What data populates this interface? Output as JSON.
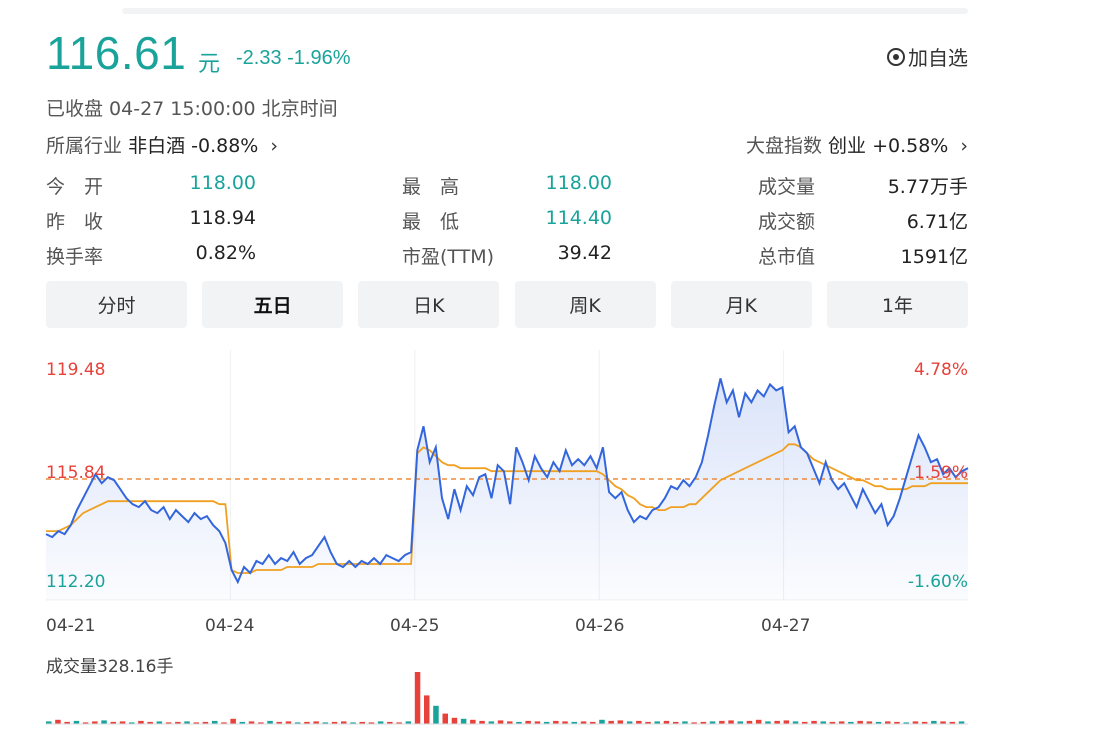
{
  "quote": {
    "price": "116.61",
    "unit": "元",
    "change": "-2.33 -1.96%",
    "add_watchlist": "加自选",
    "status": "已收盘  04-27 15:00:00  北京时间"
  },
  "industry": {
    "label": "所属行业",
    "name": "非白酒",
    "change": "-0.88%"
  },
  "index": {
    "label": "大盘指数",
    "name": "创业",
    "change": "+0.58%"
  },
  "stats": {
    "open_label": "今　开",
    "open": "118.00",
    "high_label": "最　高",
    "high": "118.00",
    "volume_label": "成交量",
    "volume": "5.77万手",
    "prev_close_label": "昨　收",
    "prev_close": "118.94",
    "low_label": "最　低",
    "low": "114.40",
    "turnover_label": "成交额",
    "turnover": "6.71亿",
    "turnover_rate_label": "换手率",
    "turnover_rate": "0.82%",
    "pe_label": "市盈(TTM)",
    "pe": "39.42",
    "market_cap_label": "总市值",
    "market_cap": "1591亿"
  },
  "tabs": [
    "分时",
    "五日",
    "日K",
    "周K",
    "月K",
    "1年"
  ],
  "active_tab": "五日",
  "colors": {
    "up": "#e8413a",
    "down": "#1aa39a",
    "price_line": "#3366dd",
    "avg_line": "#f0a020",
    "ref_line": "#f08a3a"
  },
  "chart_data": {
    "type": "line",
    "x_labels": [
      "04-21",
      "04-24",
      "04-25",
      "04-26",
      "04-27"
    ],
    "y_left": {
      "top": "119.48",
      "mid": "115.84",
      "bottom": "112.20"
    },
    "y_right": {
      "top": "4.78%",
      "mid": "1.59%",
      "bottom": "-1.60%"
    },
    "reference_value": 115.84,
    "ylim": [
      112.2,
      119.48
    ],
    "series": [
      {
        "values": [
          114.0,
          113.9,
          114.1,
          114.0,
          114.3,
          114.8,
          115.2,
          115.6,
          116.0,
          115.7,
          115.9,
          115.8,
          115.5,
          115.2,
          115.0,
          114.9,
          115.1,
          114.8,
          114.7,
          114.9,
          114.5,
          114.8,
          114.6,
          114.4,
          114.7,
          114.5,
          114.6,
          114.3,
          114.1,
          113.7,
          112.8,
          112.4,
          112.9,
          112.7,
          113.1,
          113.0,
          113.3,
          113.0,
          113.2,
          113.1,
          113.4,
          113.0,
          113.2,
          113.3,
          113.6,
          113.9,
          113.4,
          113.0,
          112.9,
          113.1,
          112.9,
          113.1,
          113.0,
          113.2,
          113.0,
          113.3,
          113.2,
          113.1,
          113.3,
          113.4,
          116.8,
          117.6,
          116.4,
          116.9,
          115.2,
          114.5,
          115.5,
          114.8,
          115.6,
          115.3,
          115.9,
          116.0,
          115.2,
          116.3,
          116.1,
          115.0,
          116.9,
          116.4,
          115.8,
          116.6,
          116.2,
          115.9,
          116.4,
          116.1,
          116.8,
          116.3,
          116.5,
          116.3,
          116.6,
          116.2,
          116.9,
          115.4,
          115.2,
          115.4,
          114.8,
          114.4,
          114.6,
          114.5,
          114.8,
          114.9,
          115.2,
          115.6,
          115.5,
          115.8,
          115.6,
          115.9,
          116.4,
          117.3,
          118.3,
          119.2,
          118.4,
          118.8,
          117.9,
          118.7,
          118.4,
          118.8,
          118.6,
          119.0,
          118.8,
          118.9,
          117.4,
          117.6,
          116.9,
          116.7,
          116.2,
          115.7,
          116.4,
          115.8,
          115.5,
          115.7,
          115.3,
          114.9,
          115.5,
          115.1,
          114.7,
          115.0,
          114.3,
          114.6,
          115.2,
          115.9,
          116.6,
          117.3,
          116.9,
          116.4,
          116.5,
          116.0,
          116.2,
          115.9,
          116.1,
          116.2
        ]
      },
      {
        "values": [
          114.1,
          114.1,
          114.1,
          114.2,
          114.3,
          114.5,
          114.7,
          114.8,
          114.9,
          115.0,
          115.1,
          115.1,
          115.1,
          115.1,
          115.1,
          115.1,
          115.1,
          115.1,
          115.1,
          115.1,
          115.1,
          115.1,
          115.1,
          115.1,
          115.1,
          115.1,
          115.1,
          115.1,
          115.0,
          115.0,
          112.8,
          112.7,
          112.7,
          112.7,
          112.8,
          112.8,
          112.8,
          112.8,
          112.8,
          112.9,
          112.9,
          112.9,
          112.9,
          112.9,
          113.0,
          113.0,
          113.0,
          113.0,
          113.0,
          113.0,
          113.0,
          113.0,
          113.0,
          113.0,
          113.0,
          113.0,
          113.0,
          113.0,
          113.0,
          113.0,
          116.7,
          116.9,
          116.8,
          116.6,
          116.4,
          116.3,
          116.3,
          116.2,
          116.2,
          116.2,
          116.2,
          116.2,
          116.1,
          116.1,
          116.1,
          116.1,
          116.1,
          116.1,
          116.1,
          116.1,
          116.1,
          116.1,
          116.1,
          116.1,
          116.1,
          116.1,
          116.1,
          116.1,
          116.1,
          116.1,
          116.0,
          115.8,
          115.6,
          115.5,
          115.3,
          115.2,
          115.0,
          114.9,
          114.9,
          114.8,
          114.8,
          114.9,
          114.9,
          114.9,
          115.0,
          115.0,
          115.2,
          115.4,
          115.6,
          115.8,
          115.9,
          116.0,
          116.1,
          116.2,
          116.3,
          116.4,
          116.5,
          116.6,
          116.7,
          116.8,
          117.0,
          117.0,
          116.9,
          116.7,
          116.5,
          116.4,
          116.3,
          116.2,
          116.1,
          116.0,
          115.9,
          115.8,
          115.8,
          115.7,
          115.6,
          115.6,
          115.5,
          115.5,
          115.5,
          115.5,
          115.6,
          115.6,
          115.6,
          115.7,
          115.7,
          115.7,
          115.7,
          115.7,
          115.7,
          115.7
        ]
      }
    ]
  },
  "volume": {
    "label": "成交量328.16手",
    "spikes": [
      0.05,
      0.08,
      0.04,
      0.06,
      0.03,
      0.05,
      0.07,
      0.04,
      0.05,
      0.03,
      0.06,
      0.04,
      0.05,
      0.03,
      0.04,
      0.05,
      0.03,
      0.04,
      0.06,
      0.03,
      0.1,
      0.04,
      0.05,
      0.03,
      0.06,
      0.04,
      0.05,
      0.03,
      0.04,
      0.05,
      0.03,
      0.04,
      0.05,
      0.03,
      0.04,
      0.03,
      0.05,
      0.04,
      0.03,
      0.05,
      1.0,
      0.55,
      0.35,
      0.2,
      0.12,
      0.1,
      0.08,
      0.06,
      0.05,
      0.07,
      0.05,
      0.04,
      0.06,
      0.05,
      0.04,
      0.06,
      0.05,
      0.04,
      0.05,
      0.04,
      0.08,
      0.06,
      0.07,
      0.05,
      0.06,
      0.04,
      0.05,
      0.06,
      0.04,
      0.05,
      0.03,
      0.04,
      0.05,
      0.06,
      0.07,
      0.05,
      0.06,
      0.08,
      0.05,
      0.06,
      0.07,
      0.05,
      0.04,
      0.06,
      0.05,
      0.04,
      0.05,
      0.04,
      0.06,
      0.05,
      0.04,
      0.05,
      0.04,
      0.03,
      0.05,
      0.04,
      0.06,
      0.05,
      0.04,
      0.05
    ]
  }
}
